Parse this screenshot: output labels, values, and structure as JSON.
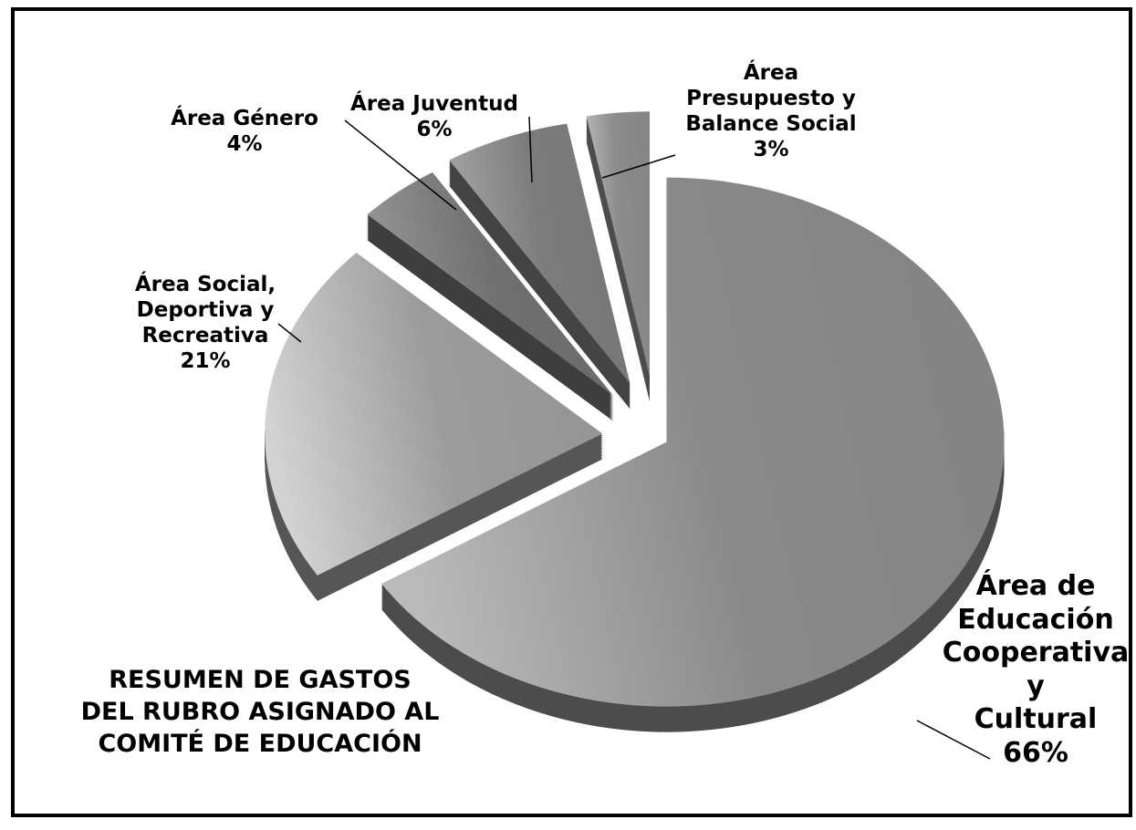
{
  "chart_data": {
    "type": "pie",
    "title": "RESUMEN DE GASTOS\nDEL RUBRO ASIGNADO AL\nCOMITÉ DE EDUCACIÓN",
    "categories": [
      "Área de\nEducación\nCooperativa y\nCultural",
      "Área Social,\nDeportiva y\nRecreativa",
      "Área Género",
      "Área Juventud",
      "Área\nPresupuesto y\nBalance Social"
    ],
    "values": [
      66,
      21,
      4,
      6,
      3
    ],
    "value_labels": [
      "66%",
      "21%",
      "4%",
      "6%",
      "3%"
    ],
    "colors": [
      "#8a8a8a",
      "#9c9c9c",
      "#707070",
      "#7c7c7c",
      "#8c8c8c"
    ]
  }
}
